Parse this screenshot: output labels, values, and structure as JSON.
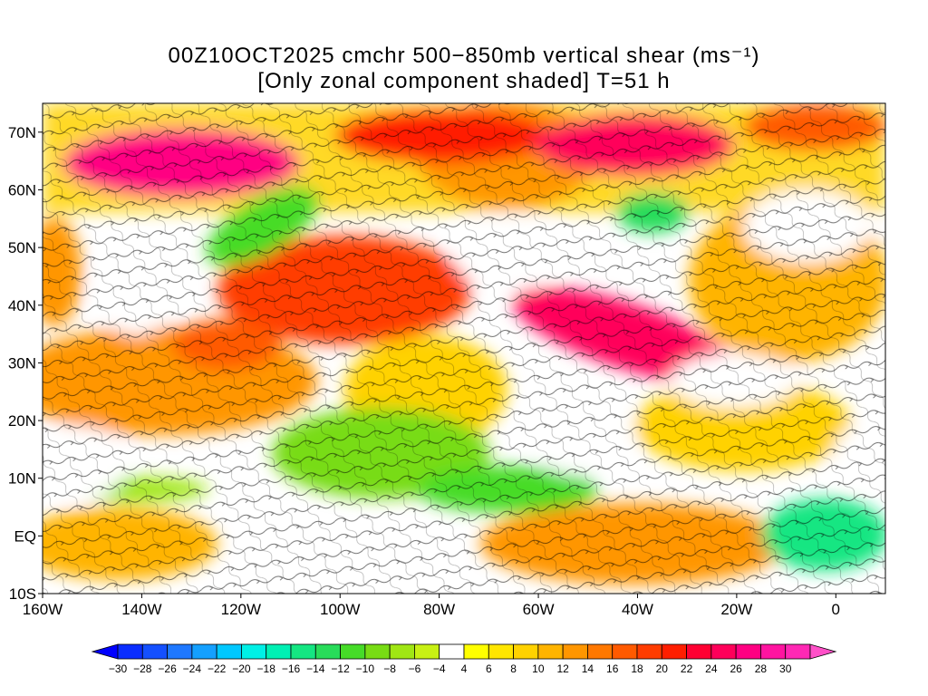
{
  "title": {
    "line1": "00Z10OCT2025 cmchr 500−850mb vertical shear (ms⁻¹)",
    "line2": "[Only zonal component shaded] T=51 h"
  },
  "map": {
    "lat_labels": [
      "70N",
      "60N",
      "50N",
      "40N",
      "30N",
      "20N",
      "10N",
      "EQ",
      "10S"
    ],
    "lon_labels": [
      "160W",
      "140W",
      "120W",
      "100W",
      "80W",
      "60W",
      "40W",
      "20W",
      "0"
    ],
    "lon_range": [
      -160,
      10
    ],
    "lat_range": [
      -10,
      75
    ]
  },
  "colorbar": {
    "labels": [
      "−30",
      "−28",
      "−26",
      "−24",
      "−22",
      "−20",
      "−18",
      "−16",
      "−14",
      "−12",
      "−10",
      "−8",
      "−6",
      "−4",
      "4",
      "6",
      "8",
      "10",
      "12",
      "14",
      "16",
      "18",
      "20",
      "22",
      "24",
      "26",
      "28",
      "30"
    ],
    "colors": [
      "#0000ff",
      "#0a2dff",
      "#1450ff",
      "#1e78ff",
      "#14a0ff",
      "#00c8ff",
      "#00f0e6",
      "#00f0b4",
      "#14e682",
      "#28dc5a",
      "#46dc28",
      "#78dc14",
      "#a0e614",
      "#c8f014",
      "#ffffff",
      "#ffff00",
      "#ffe600",
      "#ffd200",
      "#ffb400",
      "#ff9600",
      "#ff7800",
      "#ff5a00",
      "#ff3c00",
      "#ff1e00",
      "#ff0032",
      "#ff005a",
      "#ff0082",
      "#ff14a0",
      "#ff28b4",
      "#ff50c8"
    ]
  }
}
